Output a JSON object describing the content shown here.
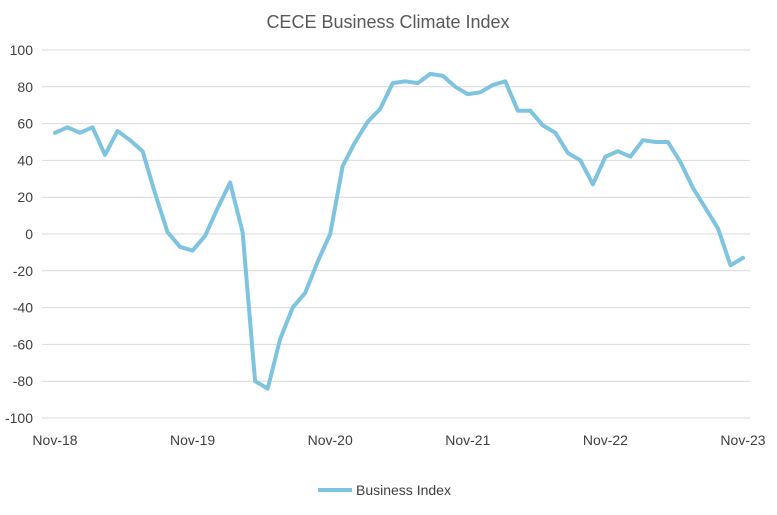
{
  "chart_data": {
    "type": "line",
    "title": "CECE Business Climate Index",
    "xlabel": "",
    "ylabel": "",
    "ylim": [
      -100,
      100
    ],
    "yticks": [
      100,
      80,
      60,
      40,
      20,
      0,
      -20,
      -40,
      -60,
      -80,
      -100
    ],
    "x_tick_labels": [
      "Nov-18",
      "Nov-19",
      "Nov-20",
      "Nov-21",
      "Nov-22",
      "Nov-23"
    ],
    "x_start": "Nov-18",
    "x_end": "Nov-23",
    "grid": true,
    "legend_position": "bottom",
    "series": [
      {
        "name": "Business Index",
        "color": "#7ec3e0",
        "values": [
          55,
          58,
          55,
          58,
          43,
          56,
          51,
          45,
          22,
          1,
          -7,
          -9,
          -1,
          14,
          28,
          1,
          -80,
          -84,
          -57,
          -40,
          -32,
          -15,
          0,
          37,
          50,
          61,
          68,
          82,
          83,
          82,
          87,
          86,
          80,
          76,
          77,
          81,
          83,
          67,
          67,
          59,
          55,
          44,
          40,
          27,
          42,
          45,
          42,
          51,
          50,
          50,
          39,
          25,
          14,
          3,
          -17,
          -13
        ]
      }
    ]
  }
}
